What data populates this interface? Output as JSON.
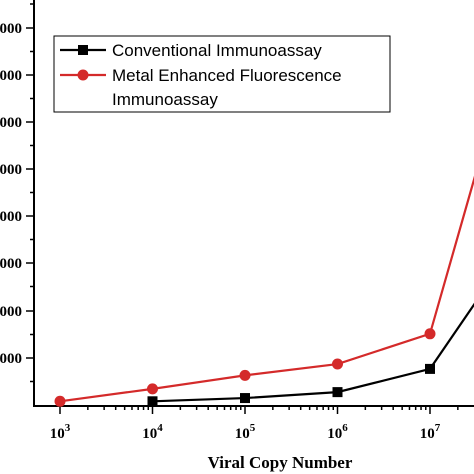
{
  "chart_data": {
    "type": "line",
    "xlabel": "Viral Copy Number",
    "ylabel": "",
    "x_scale": "log",
    "x_ticks": [
      {
        "value": 1000,
        "base": "10",
        "exp": "3"
      },
      {
        "value": 10000,
        "base": "10",
        "exp": "4"
      },
      {
        "value": 100000,
        "base": "10",
        "exp": "5"
      },
      {
        "value": 1000000,
        "base": "10",
        "exp": "6"
      },
      {
        "value": 10000000,
        "base": "10",
        "exp": "7"
      }
    ],
    "y_tick_labels": [
      "000",
      "000",
      "000",
      "000",
      "000",
      "000",
      "000",
      "000"
    ],
    "legend_position": "top-left",
    "series": [
      {
        "name": "Conventional Immunoassay",
        "color": "#000000",
        "marker": "square",
        "x": [
          10000,
          100000,
          1000000,
          10000000,
          31622777
        ],
        "y": [
          0.5,
          1.1,
          2.2,
          6.5,
          19.0
        ]
      },
      {
        "name": "Metal Enhanced Fluorescence Immunoassay",
        "color": "#d42a2a",
        "marker": "circle",
        "x": [
          1000,
          10000,
          100000,
          1000000,
          10000000,
          31622777
        ],
        "y": [
          0.5,
          2.8,
          5.3,
          7.4,
          13.0,
          43.0
        ]
      }
    ]
  }
}
